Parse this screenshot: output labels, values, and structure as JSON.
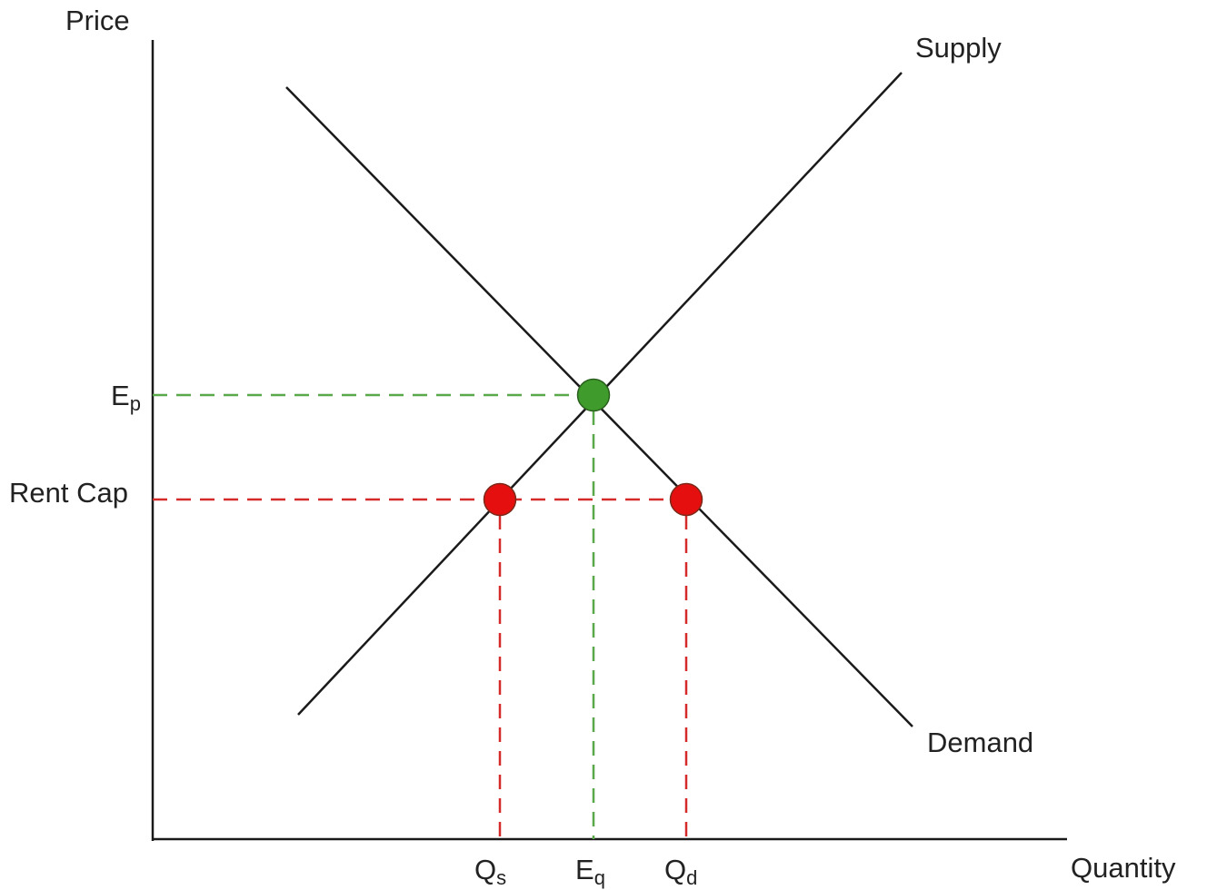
{
  "axes": {
    "y_label": "Price",
    "x_label": "Quantity"
  },
  "curves": {
    "supply_label": "Supply",
    "demand_label": "Demand"
  },
  "price_markers": {
    "equilibrium_main": "E",
    "equilibrium_sub": "p",
    "rent_cap": "Rent Cap"
  },
  "quantity_markers": {
    "qs_main": "Q",
    "qs_sub": "s",
    "eq_main": "E",
    "eq_sub": "q",
    "qd_main": "Q",
    "qd_sub": "d"
  },
  "colors": {
    "line": "#1a1a1a",
    "equilibrium": "#3f9b2c",
    "rent_cap": "#e11b1b",
    "dash_green": "#59a84a",
    "dash_red": "#d42a2a"
  }
}
